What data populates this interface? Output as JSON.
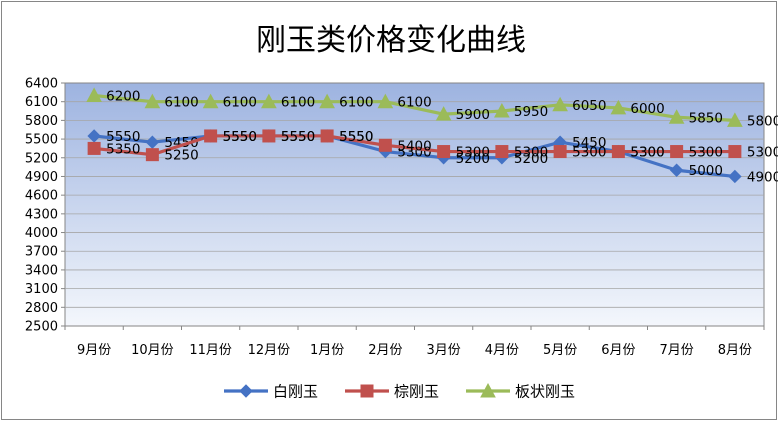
{
  "chart_data": {
    "type": "line",
    "title": "刚玉类价格变化曲线",
    "xlabel": "",
    "ylabel": "",
    "categories": [
      "9月份",
      "10月份",
      "11月份",
      "12月份",
      "1月份",
      "2月份",
      "3月份",
      "4月份",
      "5月份",
      "6月份",
      "7月份",
      "8月份"
    ],
    "ylim": [
      2500,
      6400
    ],
    "yticks": [
      2500,
      2800,
      3100,
      3400,
      3700,
      4000,
      4300,
      4600,
      4900,
      5200,
      5500,
      5800,
      6100,
      6400
    ],
    "grid": true,
    "legend": "bottom",
    "series": [
      {
        "name": "白刚玉",
        "color": "#4472C4",
        "marker": "diamond",
        "values": [
          5550,
          5450,
          5550,
          5550,
          5550,
          5300,
          5200,
          5200,
          5450,
          5300,
          5000,
          4900
        ]
      },
      {
        "name": "棕刚玉",
        "color": "#C0504D",
        "marker": "square",
        "values": [
          5350,
          5250,
          5550,
          5550,
          5550,
          5400,
          5300,
          5300,
          5300,
          5300,
          5300,
          5300
        ]
      },
      {
        "name": "板状刚玉",
        "color": "#9BBB59",
        "marker": "triangle",
        "values": [
          6200,
          6100,
          6100,
          6100,
          6100,
          6100,
          5900,
          5950,
          6050,
          6000,
          5850,
          5800
        ]
      }
    ]
  }
}
